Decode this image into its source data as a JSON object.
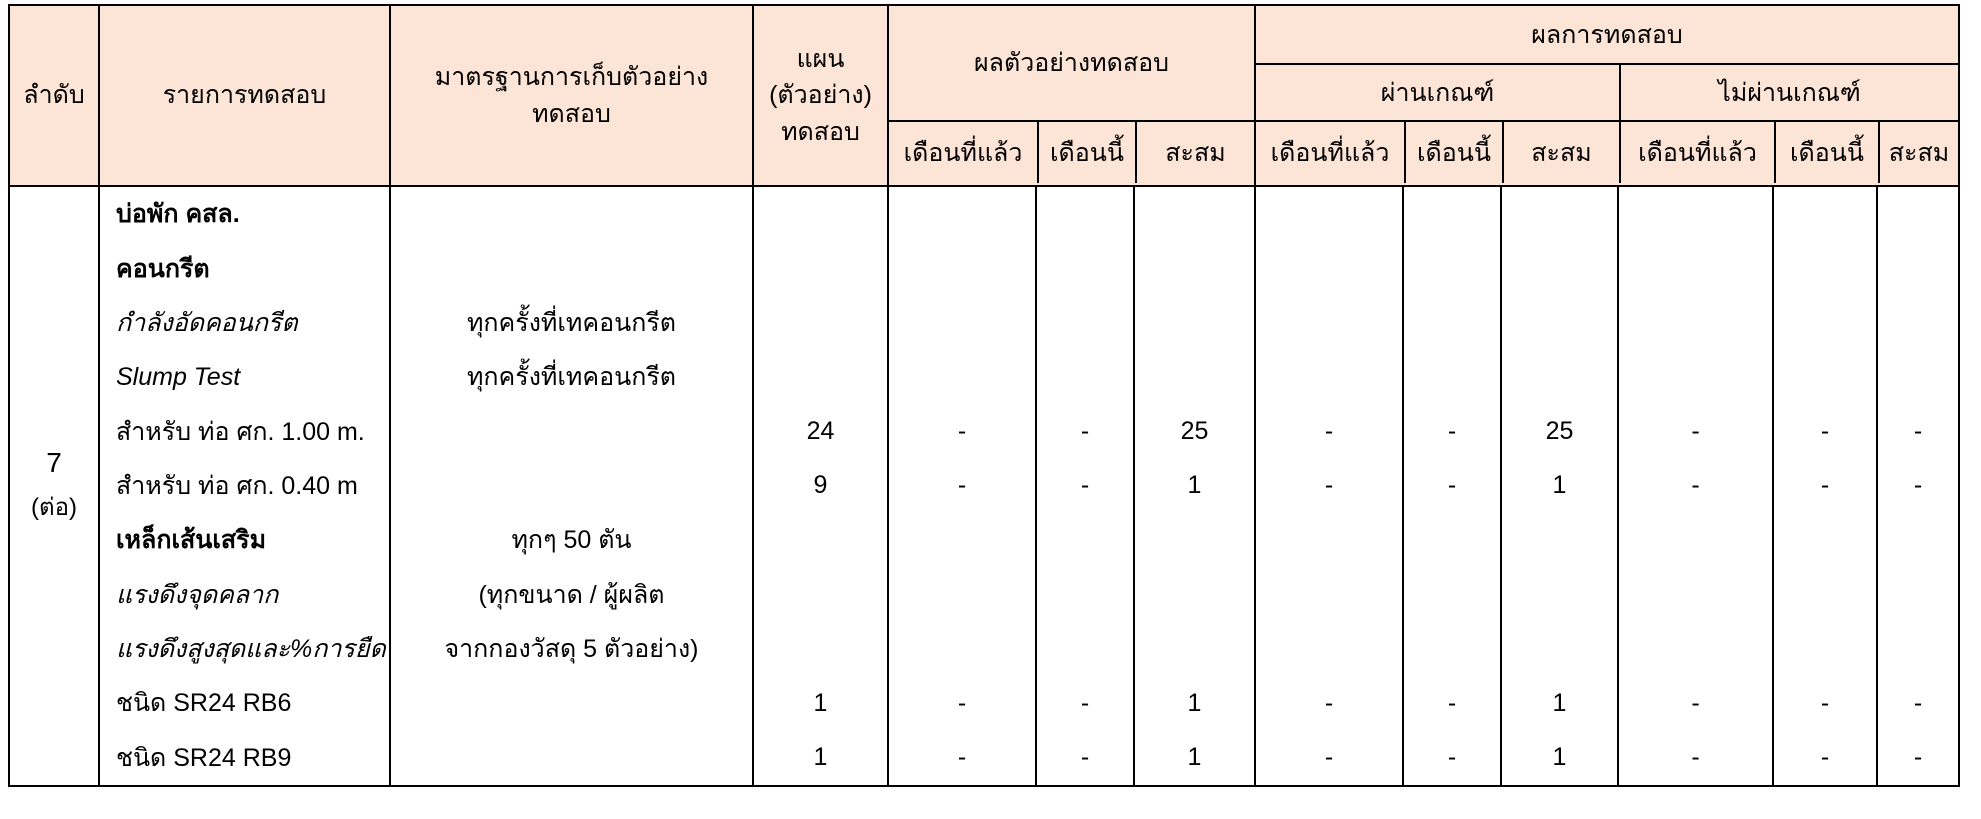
{
  "table": {
    "colors": {
      "header_bg": "#fce4d6",
      "border": "#000000",
      "body_bg": "#ffffff"
    },
    "header": {
      "col_order": "ลำดับ",
      "col_item": "รายการทดสอบ",
      "col_standard": "มาตรฐานการเก็บตัวอย่างทดสอบ",
      "col_plan": "แผน (ตัวอย่าง) ทดสอบ",
      "group_sample": "ผลตัวอย่างทดสอบ",
      "group_result": "ผลการทดสอบ",
      "group_pass": "ผ่านเกณฑ์",
      "group_fail": "ไม่ผ่านเกณฑ์",
      "sub_last_month": "เดือนที่แล้ว",
      "sub_this_month": "เดือนนี้",
      "sub_cumulative": "สะสม"
    },
    "order": {
      "number": "7",
      "note": "(ต่อ)"
    },
    "rows": [
      {
        "label": "บ่อพัก คสล.",
        "style": "bold",
        "standard": "",
        "plan": "",
        "sample": [
          "",
          "",
          ""
        ],
        "pass": [
          "",
          "",
          ""
        ],
        "fail": [
          "",
          "",
          ""
        ]
      },
      {
        "label": "คอนกรีต",
        "style": "bold",
        "standard": "",
        "plan": "",
        "sample": [
          "",
          "",
          ""
        ],
        "pass": [
          "",
          "",
          ""
        ],
        "fail": [
          "",
          "",
          ""
        ]
      },
      {
        "label": "กำลังอัดคอนกรีต",
        "style": "italic",
        "standard": "ทุกครั้งที่เทคอนกรีต",
        "plan": "",
        "sample": [
          "",
          "",
          ""
        ],
        "pass": [
          "",
          "",
          ""
        ],
        "fail": [
          "",
          "",
          ""
        ]
      },
      {
        "label": "Slump Test",
        "style": "italic",
        "standard": "ทุกครั้งที่เทคอนกรีต",
        "plan": "",
        "sample": [
          "",
          "",
          ""
        ],
        "pass": [
          "",
          "",
          ""
        ],
        "fail": [
          "",
          "",
          ""
        ]
      },
      {
        "label": "สำหรับ ท่อ ศก. 1.00 m.",
        "style": "normal",
        "standard": "",
        "plan": "24",
        "sample": [
          "-",
          "-",
          "25"
        ],
        "pass": [
          "-",
          "-",
          "25"
        ],
        "fail": [
          "-",
          "-",
          "-"
        ]
      },
      {
        "label": "สำหรับ ท่อ ศก. 0.40 m",
        "style": "normal",
        "standard": "",
        "plan": "9",
        "sample": [
          "-",
          "-",
          "1"
        ],
        "pass": [
          "-",
          "-",
          "1"
        ],
        "fail": [
          "-",
          "-",
          "-"
        ]
      },
      {
        "label": "เหล็กเส้นเสริม",
        "style": "bold",
        "standard": "ทุกๆ 50 ตัน",
        "plan": "",
        "sample": [
          "",
          "",
          ""
        ],
        "pass": [
          "",
          "",
          ""
        ],
        "fail": [
          "",
          "",
          ""
        ]
      },
      {
        "label": "แรงดึงจุดคลาก",
        "style": "italic",
        "standard": "(ทุกขนาด / ผู้ผลิต",
        "plan": "",
        "sample": [
          "",
          "",
          ""
        ],
        "pass": [
          "",
          "",
          ""
        ],
        "fail": [
          "",
          "",
          ""
        ]
      },
      {
        "label": "แรงดึงสูงสุดและ%การยืด",
        "style": "italic",
        "standard": "จากกองวัสดุ 5 ตัวอย่าง)",
        "plan": "",
        "sample": [
          "",
          "",
          ""
        ],
        "pass": [
          "",
          "",
          ""
        ],
        "fail": [
          "",
          "",
          ""
        ]
      },
      {
        "label": "ชนิด SR24 RB6",
        "style": "normal",
        "standard": "",
        "plan": "1",
        "sample": [
          "-",
          "-",
          "1"
        ],
        "pass": [
          "-",
          "-",
          "1"
        ],
        "fail": [
          "-",
          "-",
          "-"
        ]
      },
      {
        "label": "ชนิด SR24 RB9",
        "style": "normal",
        "standard": "",
        "plan": "1",
        "sample": [
          "-",
          "-",
          "1"
        ],
        "pass": [
          "-",
          "-",
          "1"
        ],
        "fail": [
          "-",
          "-",
          "-"
        ]
      }
    ]
  }
}
